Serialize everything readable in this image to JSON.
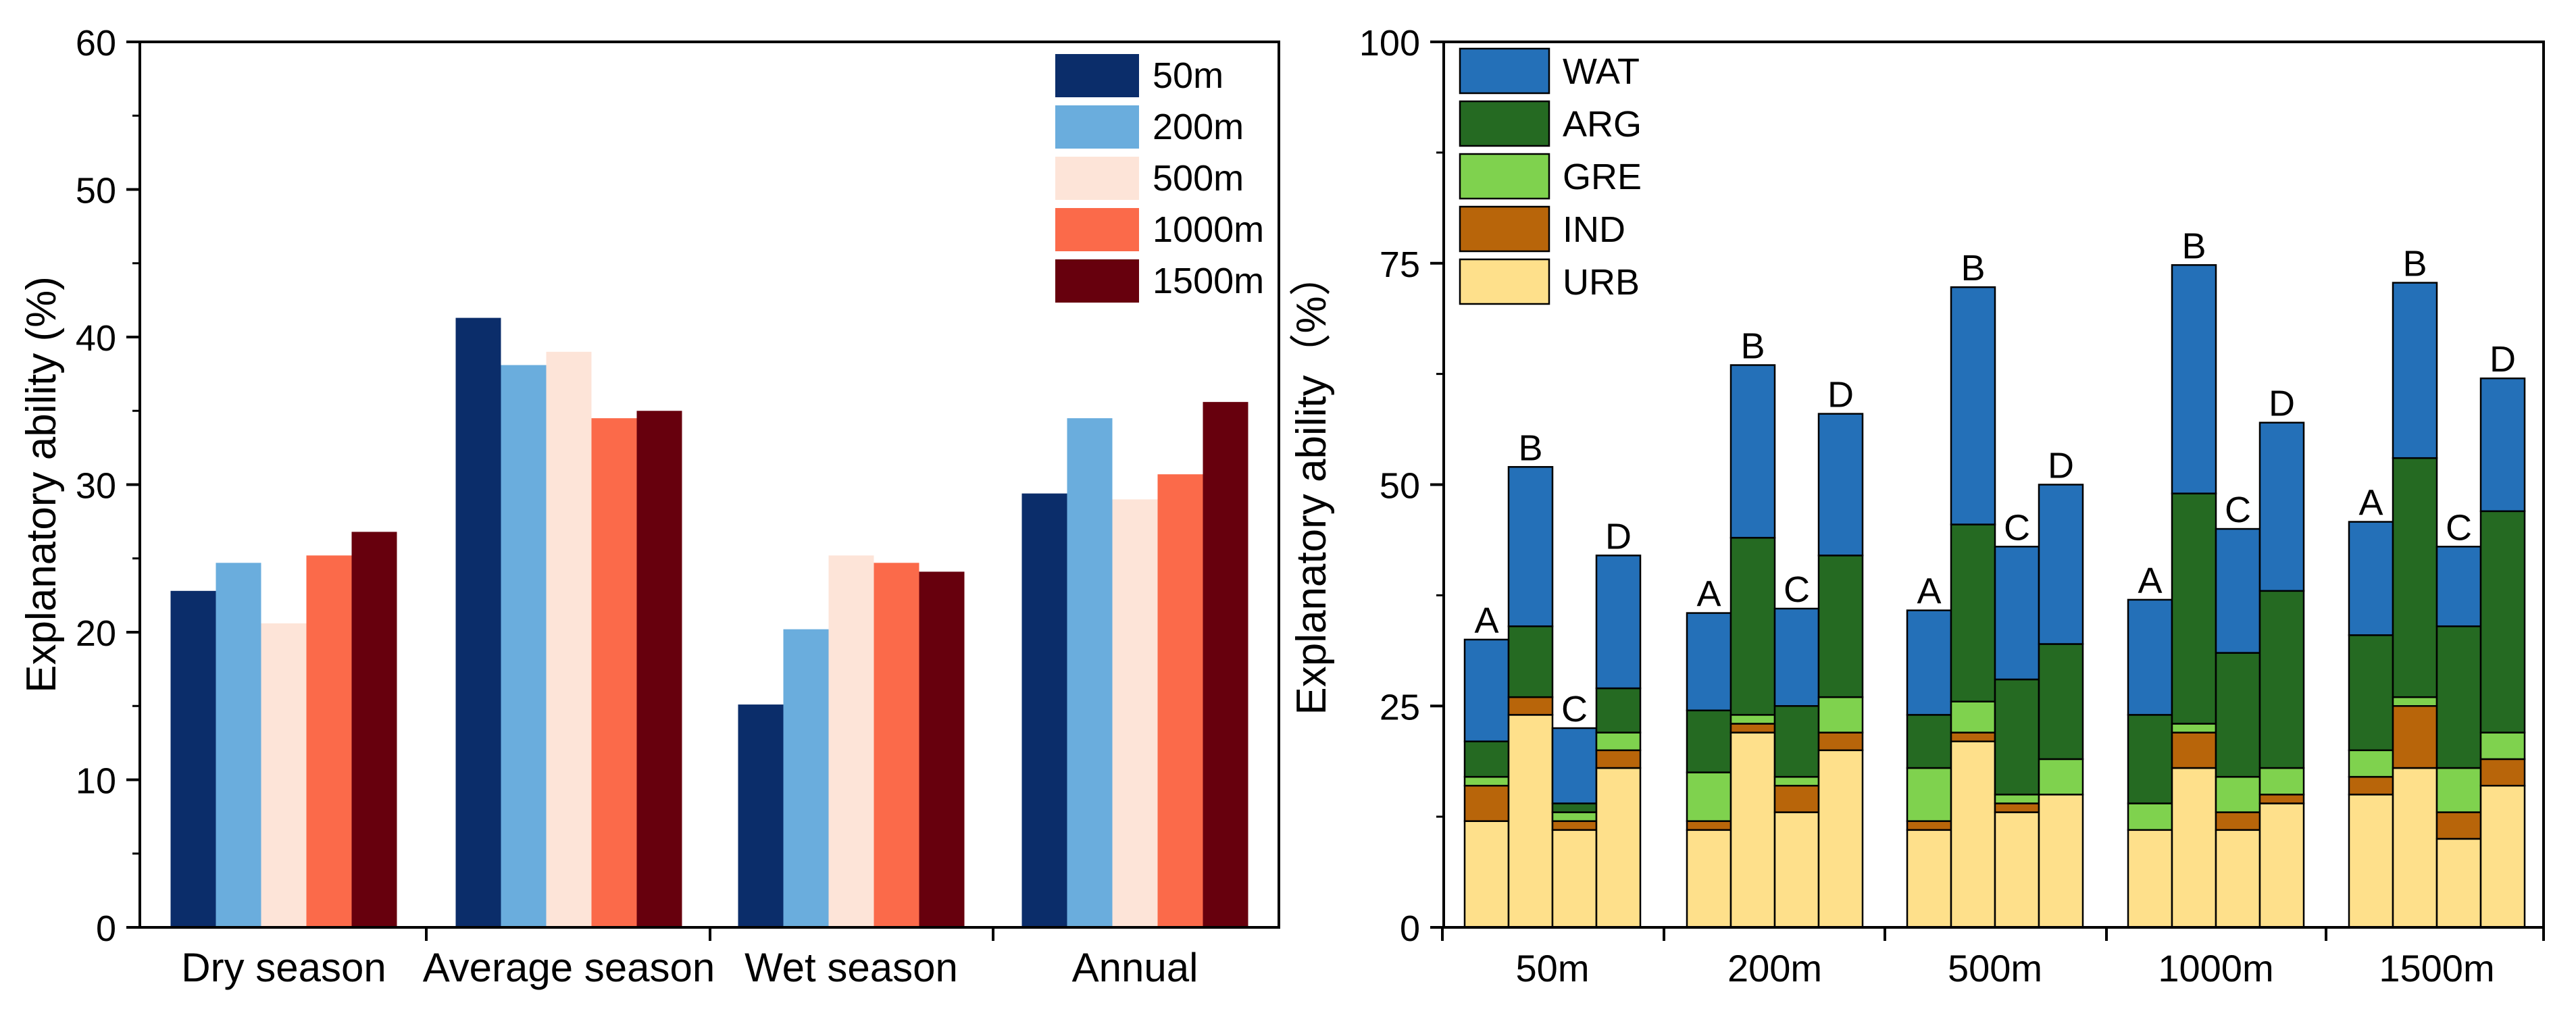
{
  "chart_data": [
    {
      "type": "bar",
      "ylabel": "Explanatory ability (%)",
      "xlabel": "",
      "ylim": [
        0,
        60
      ],
      "yticks": [
        0,
        10,
        20,
        30,
        40,
        50,
        60
      ],
      "categories": [
        "Dry season",
        "Average season",
        "Wet season",
        "Annual"
      ],
      "legend_position": "top-right",
      "series": [
        {
          "name": "50m",
          "color": "#0b2d6a",
          "values": [
            22.8,
            41.3,
            15.1,
            29.4
          ]
        },
        {
          "name": "200m",
          "color": "#6aaddd",
          "values": [
            24.7,
            38.1,
            20.2,
            34.5
          ]
        },
        {
          "name": "500m",
          "color": "#fde4d8",
          "values": [
            20.6,
            39.0,
            25.2,
            29.0
          ]
        },
        {
          "name": "1000m",
          "color": "#fb6a4a",
          "values": [
            25.2,
            34.5,
            24.7,
            30.7
          ]
        },
        {
          "name": "1500m",
          "color": "#67000d",
          "values": [
            26.8,
            35.0,
            24.1,
            35.6
          ]
        }
      ]
    },
    {
      "type": "stacked-bar",
      "ylabel": "Explanatory ability（%）",
      "xlabel": "",
      "ylim": [
        0,
        100
      ],
      "yticks": [
        0,
        25,
        50,
        75,
        100
      ],
      "categories": [
        "50m",
        "200m",
        "500m",
        "1000m",
        "1500m"
      ],
      "bar_labels": [
        "A",
        "B",
        "C",
        "D"
      ],
      "legend_position": "top-left",
      "layers": [
        {
          "name": "URB",
          "color": "#fee08b"
        },
        {
          "name": "IND",
          "color": "#b8650a"
        },
        {
          "name": "GRE",
          "color": "#7fd24e"
        },
        {
          "name": "ARG",
          "color": "#256a22"
        },
        {
          "name": "WAT",
          "color": "#2470b8"
        }
      ],
      "legend_order": [
        "WAT",
        "ARG",
        "GRE",
        "IND",
        "URB"
      ],
      "groups": [
        {
          "category": "50m",
          "bars": [
            {
              "label": "A",
              "values": [
                12,
                4,
                1,
                4,
                11.5
              ]
            },
            {
              "label": "B",
              "values": [
                24,
                2,
                0,
                8,
                18
              ]
            },
            {
              "label": "C",
              "values": [
                11,
                1,
                1,
                1,
                8.5
              ]
            },
            {
              "label": "D",
              "values": [
                18,
                2,
                2,
                5,
                15
              ]
            }
          ]
        },
        {
          "category": "200m",
          "bars": [
            {
              "label": "A",
              "values": [
                11,
                1,
                5.5,
                7,
                11
              ]
            },
            {
              "label": "B",
              "values": [
                22,
                1,
                1,
                20,
                19.5
              ]
            },
            {
              "label": "C",
              "values": [
                13,
                3,
                1,
                8,
                11
              ]
            },
            {
              "label": "D",
              "values": [
                20,
                2,
                4,
                16,
                16
              ]
            }
          ]
        },
        {
          "category": "500m",
          "bars": [
            {
              "label": "A",
              "values": [
                11,
                1,
                6,
                6,
                11.8
              ]
            },
            {
              "label": "B",
              "values": [
                21,
                1,
                3.5,
                20,
                26.8
              ]
            },
            {
              "label": "C",
              "values": [
                13,
                1,
                1,
                13,
                15
              ]
            },
            {
              "label": "D",
              "values": [
                15,
                0,
                4,
                13,
                18
              ]
            }
          ]
        },
        {
          "category": "1000m",
          "bars": [
            {
              "label": "A",
              "values": [
                11,
                0,
                3,
                10,
                13
              ]
            },
            {
              "label": "B",
              "values": [
                18,
                4,
                1,
                26,
                25.8
              ]
            },
            {
              "label": "C",
              "values": [
                11,
                2,
                4,
                14,
                14
              ]
            },
            {
              "label": "D",
              "values": [
                14,
                1,
                3,
                20,
                19
              ]
            }
          ]
        },
        {
          "category": "1500m",
          "bars": [
            {
              "label": "A",
              "values": [
                15,
                2,
                3,
                13,
                12.8
              ]
            },
            {
              "label": "B",
              "values": [
                18,
                7,
                1,
                27,
                19.8
              ]
            },
            {
              "label": "C",
              "values": [
                10,
                3,
                5,
                16,
                9
              ]
            },
            {
              "label": "D",
              "values": [
                16,
                3,
                3,
                25,
                15
              ]
            }
          ]
        }
      ]
    }
  ]
}
